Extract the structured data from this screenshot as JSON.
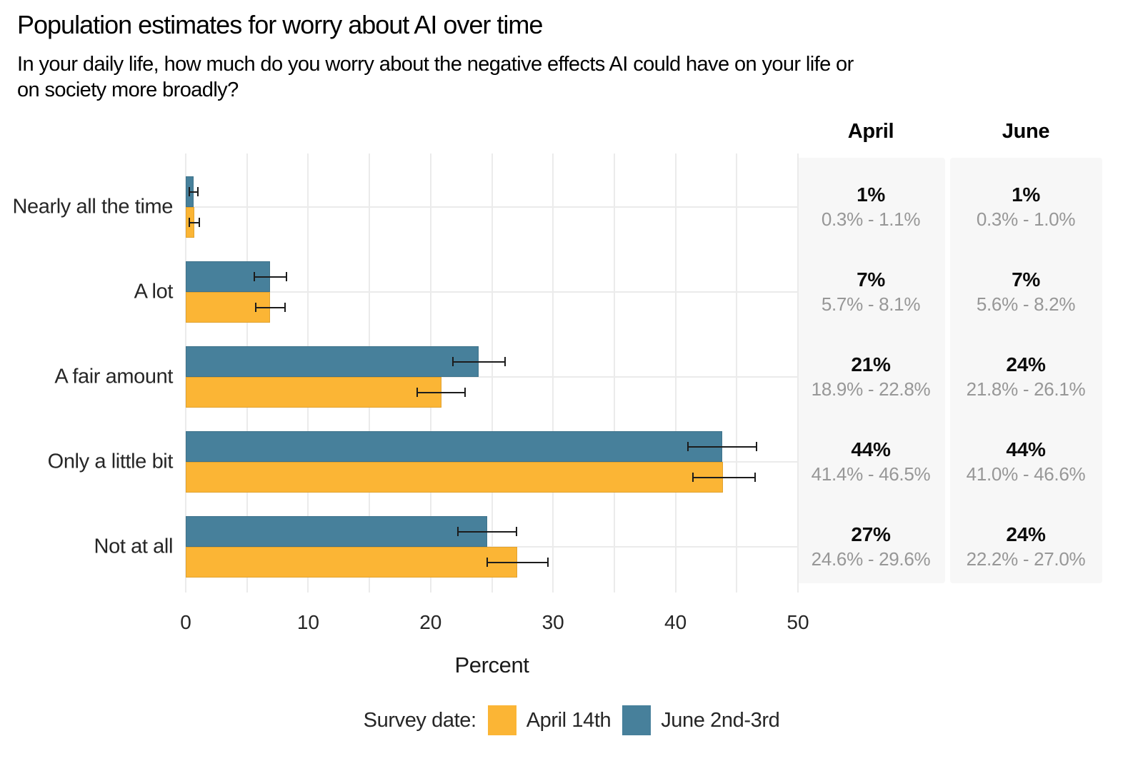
{
  "title": "Population estimates for worry about AI over time",
  "subtitle_lines": [
    "In your daily life, how much do you worry about the negative effects AI could have on your life or",
    "on society more broadly?"
  ],
  "colors": {
    "april": "#FBB535",
    "june": "#47809B",
    "table_cell_bg": "#f7f7f7",
    "gridline": "#ebebeb",
    "ci_text": "#979797",
    "error_bar": "#1c1c1c"
  },
  "chart_data": {
    "type": "bar",
    "orientation": "horizontal-grouped",
    "categories": [
      "Nearly all the time",
      "A lot",
      "A fair amount",
      "Only a little bit",
      "Not at all"
    ],
    "series": [
      {
        "name": "April 14th",
        "color": "#FBB535",
        "values_label": [
          "1%",
          "7%",
          "21%",
          "44%",
          "27%"
        ],
        "estimates": [
          0.7,
          6.9,
          20.9,
          43.9,
          27.1
        ],
        "ci_low": [
          0.3,
          5.7,
          18.9,
          41.4,
          24.6
        ],
        "ci_high": [
          1.1,
          8.1,
          22.8,
          46.5,
          29.6
        ]
      },
      {
        "name": "June 2nd-3rd",
        "color": "#47809B",
        "values_label": [
          "1%",
          "7%",
          "24%",
          "44%",
          "24%"
        ],
        "estimates": [
          0.65,
          6.9,
          23.9,
          43.8,
          24.6
        ],
        "ci_low": [
          0.3,
          5.6,
          21.8,
          41.0,
          22.2
        ],
        "ci_high": [
          1.0,
          8.2,
          26.1,
          46.6,
          27.0
        ]
      }
    ],
    "xlabel": "Percent",
    "x_ticks": [
      0,
      10,
      20,
      30,
      40,
      50
    ],
    "xlim": [
      0,
      50
    ],
    "grid_every": 5,
    "legend_position": "bottom"
  },
  "table": {
    "columns": [
      "April",
      "June"
    ],
    "rows": [
      {
        "category": "Nearly all the time",
        "april": {
          "value": "1%",
          "ci": "0.3% - 1.1%"
        },
        "june": {
          "value": "1%",
          "ci": "0.3% - 1.0%"
        }
      },
      {
        "category": "A lot",
        "april": {
          "value": "7%",
          "ci": "5.7% - 8.1%"
        },
        "june": {
          "value": "7%",
          "ci": "5.6% - 8.2%"
        }
      },
      {
        "category": "A fair amount",
        "april": {
          "value": "21%",
          "ci": "18.9% - 22.8%"
        },
        "june": {
          "value": "24%",
          "ci": "21.8% - 26.1%"
        }
      },
      {
        "category": "Only a little bit",
        "april": {
          "value": "44%",
          "ci": "41.4% - 46.5%"
        },
        "june": {
          "value": "44%",
          "ci": "41.0% - 46.6%"
        }
      },
      {
        "category": "Not at all",
        "april": {
          "value": "27%",
          "ci": "24.6% - 29.6%"
        },
        "june": {
          "value": "24%",
          "ci": "22.2% - 27.0%"
        }
      }
    ]
  },
  "legend": {
    "label": "Survey date:",
    "items": [
      {
        "name": "April 14th",
        "color": "#FBB535"
      },
      {
        "name": "June 2nd-3rd",
        "color": "#47809B"
      }
    ]
  }
}
